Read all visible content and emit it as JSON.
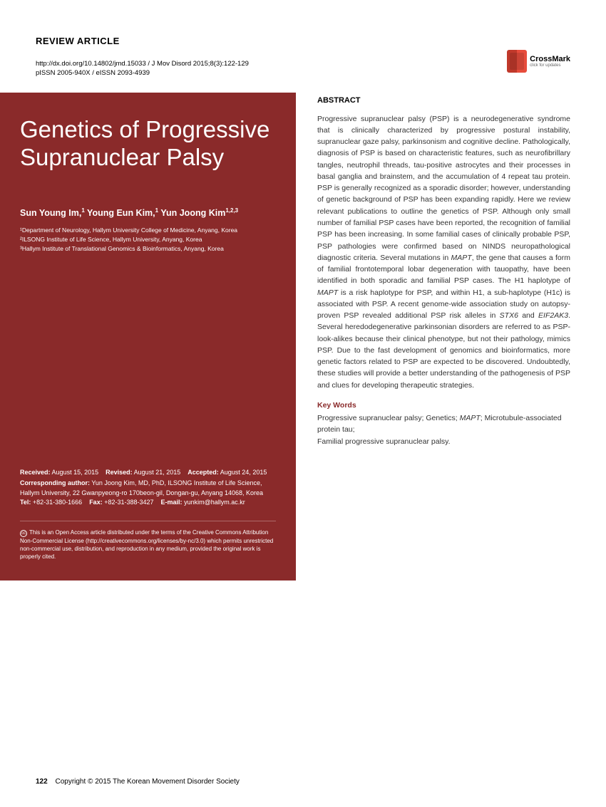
{
  "header": {
    "article_type": "REVIEW ARTICLE",
    "doi_line": "http://dx.doi.org/10.14802/jmd.15033  /  J Mov Disord  2015;8(3):122-129",
    "issn_line": "pISSN 2005-940X / eISSN 2093-4939",
    "crossmark_label": "CrossMark",
    "crossmark_sub": "click for updates"
  },
  "title": "Genetics of Progressive Supranuclear Palsy",
  "authors_html": "Sun Young Im,<span class=\"sup\">1</span> Young Eun Kim,<span class=\"sup\">1</span> Yun Joong Kim<span class=\"sup\">1,2,3</span>",
  "affiliations": [
    "¹Department of Neurology, Hallym University College of Medicine, Anyang, Korea",
    "²ILSONG Institute of Life Science, Hallym University, Anyang, Korea",
    "³Hallym Institute of Translational Genomics & Bioinformatics, Anyang, Korea"
  ],
  "dates": {
    "received_label": "Received:",
    "received": "August 15, 2015",
    "revised_label": "Revised:",
    "revised": "August 21, 2015",
    "accepted_label": "Accepted:",
    "accepted": "August 24, 2015"
  },
  "corresponding": {
    "label": "Corresponding author:",
    "text": "Yun Joong Kim, MD, PhD, ILSONG Institute of Life Science, Hallym University, 22 Gwanpyeong-ro 170beon-gil, Dongan-gu, Anyang 14068, Korea",
    "tel_label": "Tel:",
    "tel": "+82-31-380-1666",
    "fax_label": "Fax:",
    "fax": "+82-31-388-3427",
    "email_label": "E-mail:",
    "email": "yunkim@hallym.ac.kr"
  },
  "license": "This is an Open Access article distributed under the terms of the Creative Commons Attribution Non-Commercial License (http://creativecommons.org/licenses/by-nc/3.0) which permits unrestricted non-commercial use, distribution, and reproduction in any medium, provided the original work is properly cited.",
  "abstract": {
    "heading": "ABSTRACT",
    "text_html": "Progressive supranuclear palsy (PSP) is a neurodegenerative syndrome that is clinically characterized by progressive postural instability, supranuclear gaze palsy, parkinsonism and cognitive decline. Pathologically, diagnosis of PSP is based on characteristic features, such as neurofibrillary tangles, neutrophil threads, tau-positive astrocytes and their processes in basal ganglia and brainstem, and the accumulation of 4 repeat tau protein. PSP is generally recognized as a sporadic disorder; however, understanding of genetic background of PSP has been expanding rapidly. Here we review relevant publications to outline the genetics of PSP. Although only small number of familial PSP cases have been reported, the recognition of familial PSP has been increasing. In some familial cases of clinically probable PSP, PSP pathologies were confirmed based on NINDS neuropathological diagnostic criteria. Several mutations in <em>MAPT</em>, the gene that causes a form of familial frontotemporal lobar degeneration with tauopathy, have been identified in both sporadic and familial PSP cases. The H1 haplotype of <em>MAPT</em> is a risk haplotype for PSP, and within H1, a sub-haplotype (H1c) is associated with PSP. A recent genome-wide association study on autopsy-proven PSP revealed additional PSP risk alleles in <em>STX6</em> and <em>EIF2AK3</em>. Several heredodegenerative parkinsonian disorders are referred to as PSP-look-alikes because their clinical phenotype, but not their pathology, mimics PSP. Due to the fast development of genomics and bioinformatics, more genetic factors related to PSP are expected to be discovered. Undoubtedly, these studies will provide a better understanding of the pathogenesis of PSP and clues for developing therapeutic strategies."
  },
  "keywords": {
    "heading": "Key Words",
    "text_html": "Progressive supranuclear palsy; Genetics; <em>MAPT</em>; Microtubule-associated protein tau;<br>Familial progressive supranuclear palsy."
  },
  "footer": {
    "page": "122",
    "copyright": "Copyright © 2015 The Korean Movement Disorder Society"
  },
  "colors": {
    "panel_bg": "#8a2a2a",
    "keywords_heading": "#8a2a2a",
    "text_dark": "#333333",
    "white": "#ffffff"
  }
}
